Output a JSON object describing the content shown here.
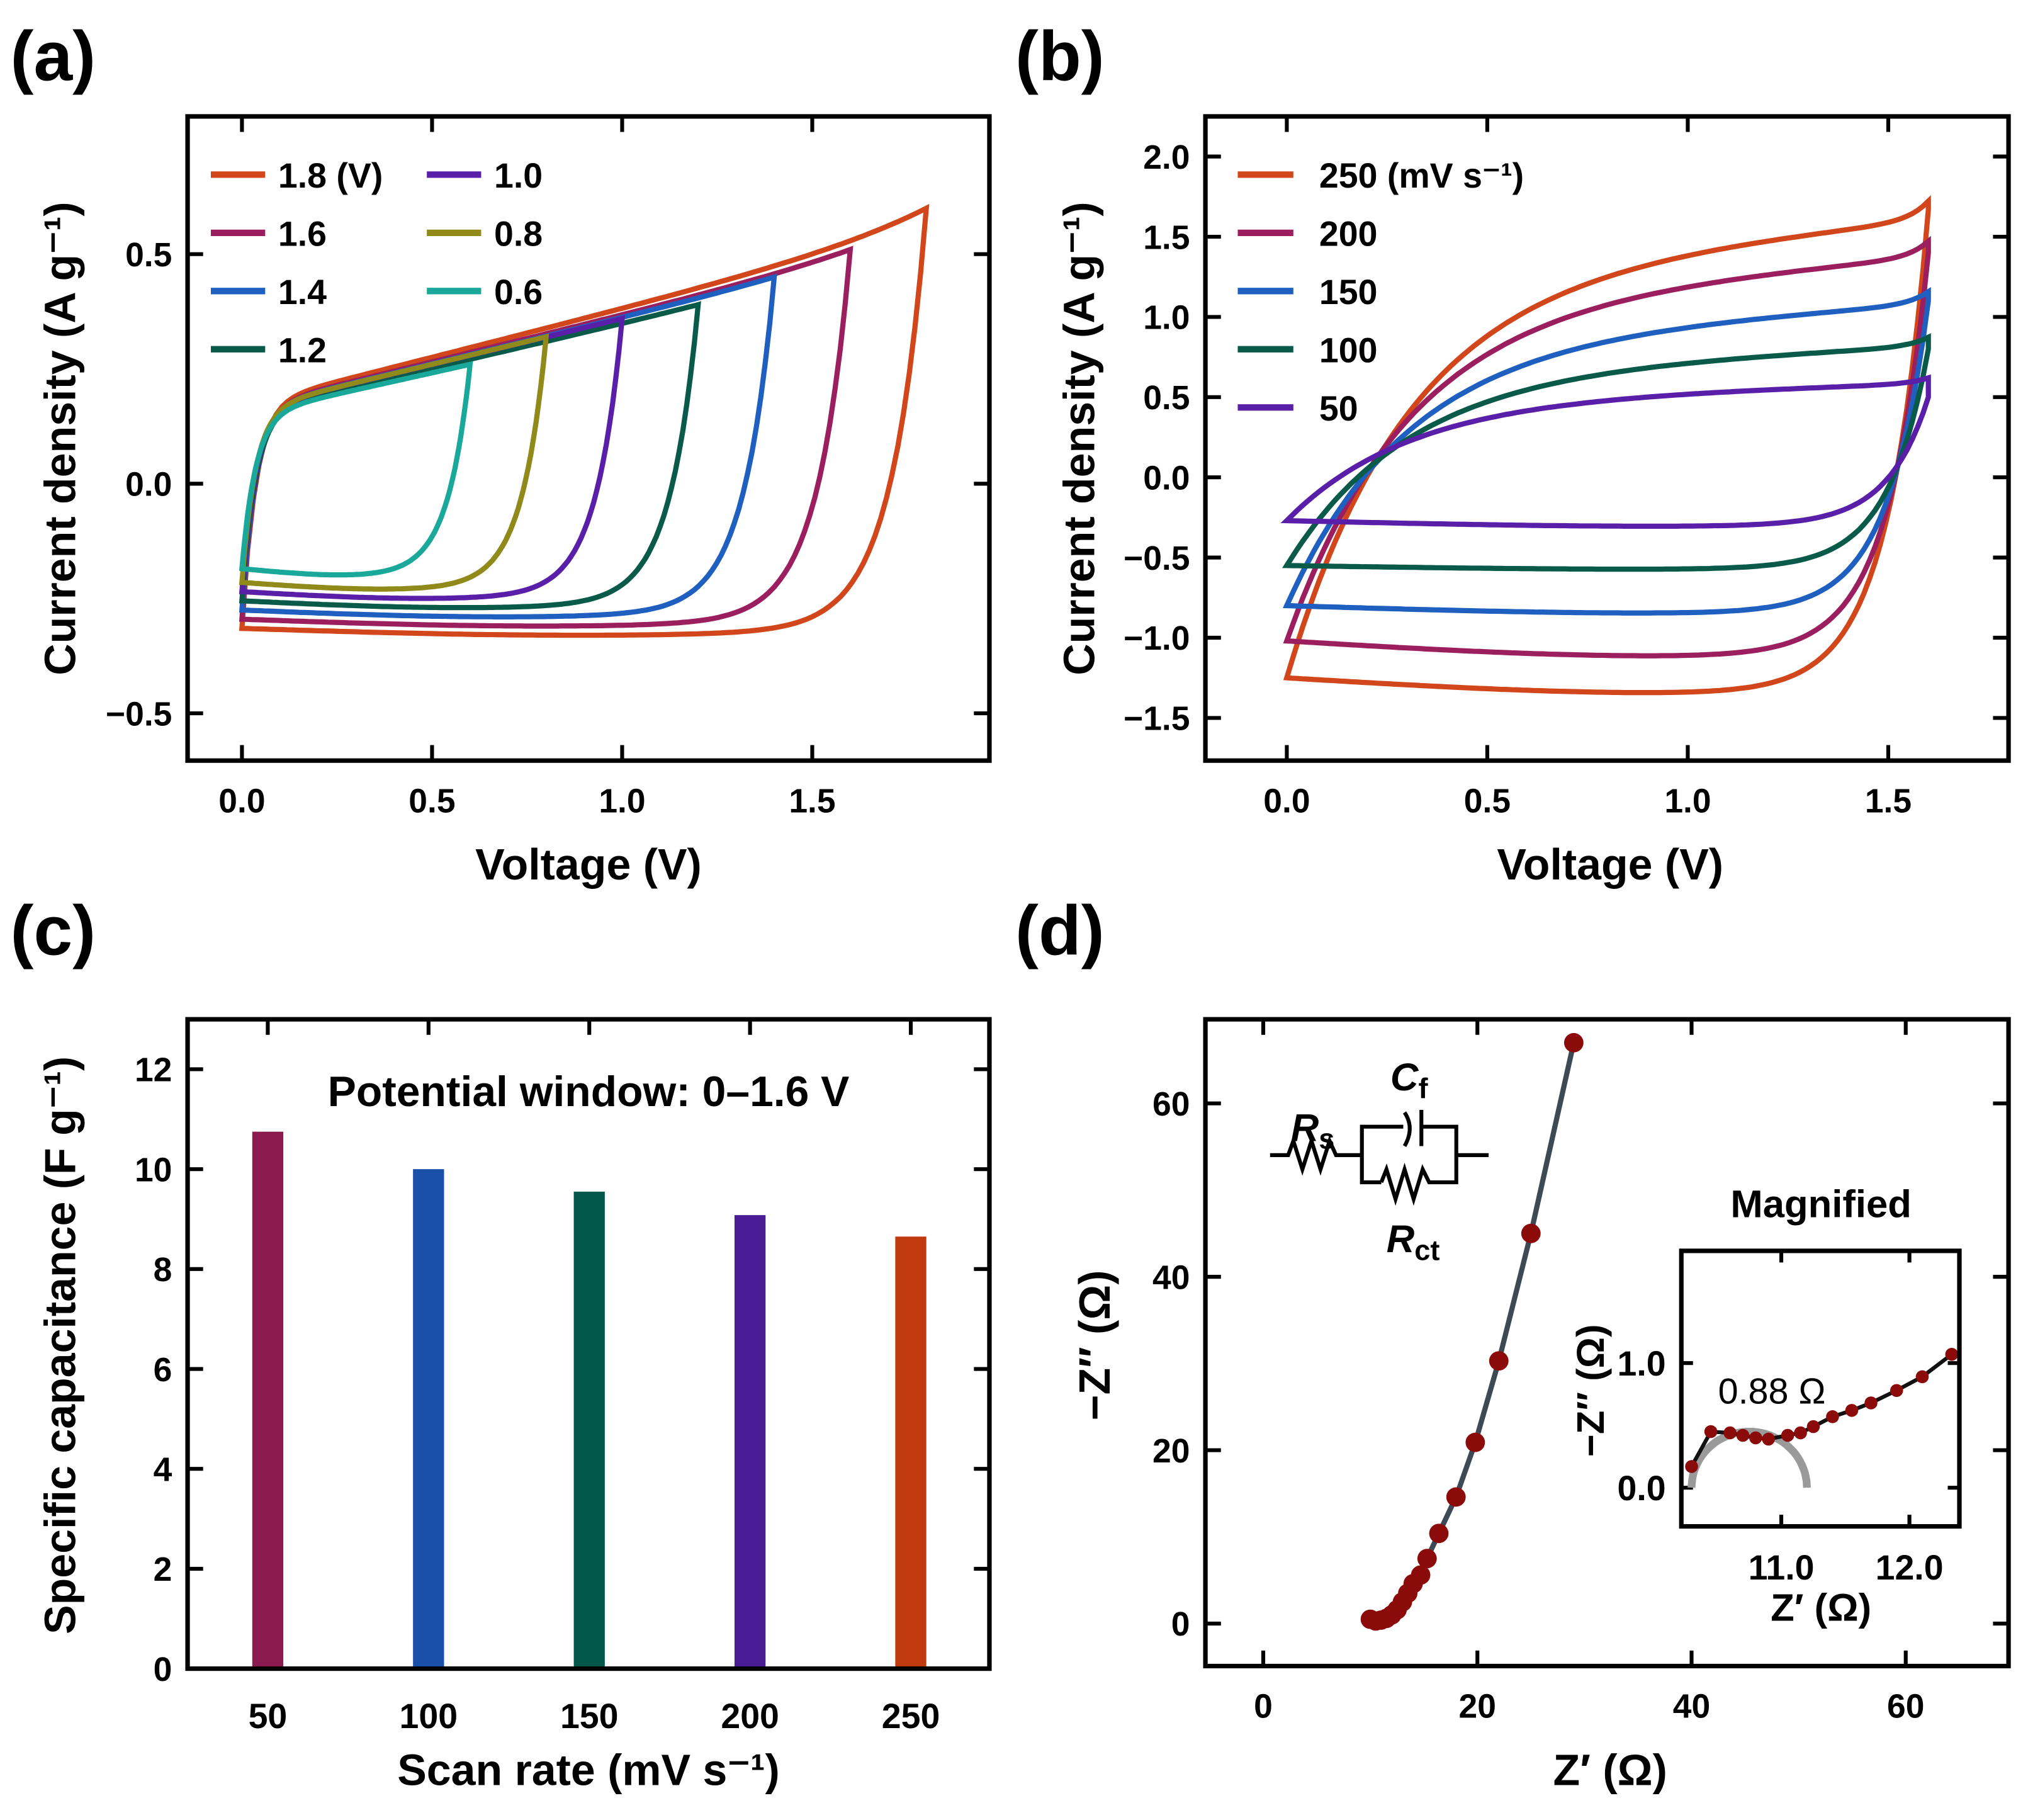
{
  "panels": {
    "a": "(a)",
    "b": "(b)",
    "c": "(c)",
    "d": "(d)"
  },
  "chart_data": [
    {
      "id": "a",
      "type": "line",
      "xlabel": "Voltage (V)",
      "ylabel": "Current density (A g⁻¹)",
      "xlim": [
        -0.143,
        1.966
      ],
      "ylim": [
        -0.603,
        0.8
      ],
      "xticks": [
        0,
        0.5,
        1.0,
        1.5
      ],
      "xticklabels": [
        "0.0",
        "0.5",
        "1.0",
        "1.5"
      ],
      "yticks": [
        -0.5,
        0,
        0.5
      ],
      "yticklabels": [
        "−0.5",
        "0.0",
        "0.5"
      ],
      "legend_position": "top-left",
      "series": [
        {
          "name": "1.8 (V)",
          "vmax": 1.8,
          "peak": 0.6,
          "cathodic": -0.33,
          "color": "#d2461b"
        },
        {
          "name": "1.6",
          "vmax": 1.6,
          "peak": 0.51,
          "cathodic": -0.31,
          "color": "#9b1f5e"
        },
        {
          "name": "1.4",
          "vmax": 1.4,
          "peak": 0.45,
          "cathodic": -0.29,
          "color": "#1f5fbf"
        },
        {
          "name": "1.2",
          "vmax": 1.2,
          "peak": 0.39,
          "cathodic": -0.27,
          "color": "#0a5a4a"
        },
        {
          "name": "1.0",
          "vmax": 1.0,
          "peak": 0.36,
          "cathodic": -0.25,
          "color": "#5a1fa8"
        },
        {
          "name": "0.8",
          "vmax": 0.8,
          "peak": 0.32,
          "cathodic": -0.23,
          "color": "#8f8a1a"
        },
        {
          "name": "0.6",
          "vmax": 0.6,
          "peak": 0.26,
          "cathodic": -0.2,
          "color": "#1aa89a"
        }
      ]
    },
    {
      "id": "b",
      "type": "line",
      "xlabel": "Voltage (V)",
      "ylabel": "Current density (A g⁻¹)",
      "xlim": [
        -0.203,
        1.8
      ],
      "ylim": [
        -1.766,
        2.25
      ],
      "xticks": [
        0,
        0.5,
        1.0,
        1.5
      ],
      "xticklabels": [
        "0.0",
        "0.5",
        "1.0",
        "1.5"
      ],
      "yticks": [
        -1.5,
        -1.0,
        -0.5,
        0,
        0.5,
        1.0,
        1.5,
        2.0
      ],
      "yticklabels": [
        "−1.5",
        "−1.0",
        "−0.5",
        "0.0",
        "0.5",
        "1.0",
        "1.5",
        "2.0"
      ],
      "legend_position": "top-left",
      "series": [
        {
          "name": "250 (mV s⁻¹)",
          "peak": 1.67,
          "start": -1.25,
          "cathodic": -1.33,
          "color": "#d2461b"
        },
        {
          "name": "200",
          "peak": 1.4,
          "start": -1.02,
          "cathodic": -1.1,
          "color": "#9b1f5e"
        },
        {
          "name": "150",
          "peak": 1.1,
          "start": -0.8,
          "cathodic": -0.84,
          "color": "#1f5fbf"
        },
        {
          "name": "100",
          "peak": 0.8,
          "start": -0.55,
          "cathodic": -0.57,
          "color": "#0a5a4a"
        },
        {
          "name": "50",
          "peak": 0.5,
          "start": -0.27,
          "cathodic": -0.3,
          "color": "#5a1fa8"
        }
      ]
    },
    {
      "id": "c",
      "type": "bar",
      "xlabel": "Scan rate (mV s⁻¹)",
      "ylabel": "Specific capacitance (F g⁻¹)",
      "annotation": "Potential window: 0–1.6 V",
      "categories": [
        "50",
        "100",
        "150",
        "200",
        "250"
      ],
      "values": [
        10.75,
        10.0,
        9.55,
        9.08,
        8.65
      ],
      "colors": [
        "#8b1a4f",
        "#1a4faa",
        "#00574a",
        "#4a1d96",
        "#c0390f"
      ],
      "ylim": [
        0,
        13.0
      ],
      "yticks": [
        0,
        2,
        4,
        6,
        8,
        10,
        12
      ],
      "yticklabels": [
        "0",
        "2",
        "4",
        "6",
        "8",
        "10",
        "12"
      ]
    },
    {
      "id": "d",
      "type": "scatter",
      "xlabel": "Z′ (Ω)",
      "ylabel": "−Z″ (Ω)",
      "xlim": [
        -5.4,
        69.6
      ],
      "ylim": [
        -4.9,
        69.7
      ],
      "xticks": [
        0,
        20,
        40,
        60
      ],
      "xticklabels": [
        "0",
        "20",
        "40",
        "60"
      ],
      "yticks": [
        0,
        20,
        40,
        60
      ],
      "yticklabels": [
        "0",
        "20",
        "40",
        "60"
      ],
      "marker_color": "#8b0a0a",
      "line_color": "#3d4a55",
      "x": [
        10,
        10.5,
        11,
        11.5,
        12,
        12.5,
        13,
        13.5,
        14,
        14.7,
        15.3,
        16.4,
        18,
        19.8,
        22,
        25,
        29
      ],
      "y": [
        0.5,
        0.3,
        0.4,
        0.6,
        1.0,
        1.6,
        2.5,
        3.5,
        4.6,
        5.6,
        7.5,
        10.4,
        14.6,
        20.9,
        30.3,
        45,
        67
      ],
      "circuit": {
        "rs": "R",
        "rs_sub": "s",
        "cf": "C",
        "cf_sub": "f",
        "rct": "R",
        "rct_sub": "ct"
      },
      "inset": {
        "title": "Magnified",
        "annotation": "0.88 Ω",
        "xlabel": "Z′ (Ω)",
        "ylabel": "−Z″ (Ω)",
        "xlim": [
          10.22,
          12.39
        ],
        "ylim": [
          -0.31,
          1.9
        ],
        "xticks": [
          11.0,
          12.0
        ],
        "xticklabels": [
          "11.0",
          "12.0"
        ],
        "yticks": [
          0.0,
          1.0
        ],
        "yticklabels": [
          "0.0",
          "1.0"
        ],
        "x": [
          10.3,
          10.45,
          10.6,
          10.7,
          10.8,
          10.9,
          11.05,
          11.15,
          11.25,
          11.4,
          11.55,
          11.7,
          11.9,
          12.1,
          12.33
        ],
        "y": [
          0.17,
          0.45,
          0.44,
          0.42,
          0.4,
          0.39,
          0.42,
          0.44,
          0.49,
          0.57,
          0.62,
          0.68,
          0.78,
          0.89,
          1.07
        ],
        "fit_semicircle": {
          "center": 10.75,
          "radius": 0.45
        }
      }
    }
  ]
}
